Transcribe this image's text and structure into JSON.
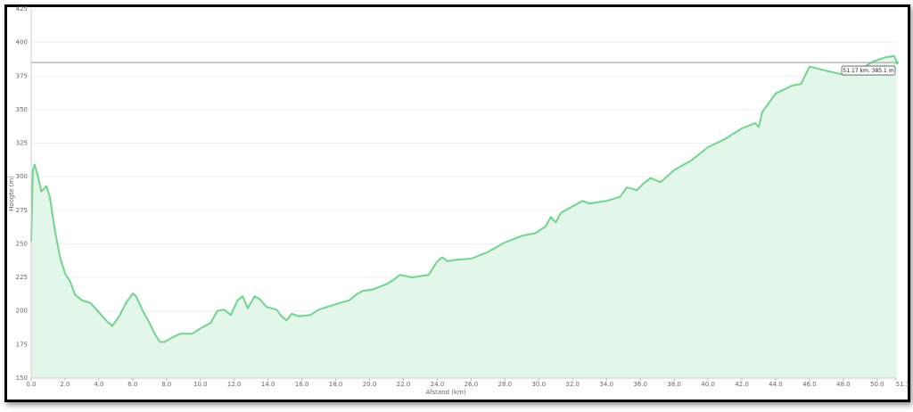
{
  "chart_data": {
    "type": "area",
    "x_label": "Afstand  (km)",
    "y_label": "Hoogte (m)",
    "x": [
      0,
      0.1,
      0.2,
      0.4,
      0.6,
      0.9,
      1.1,
      1.4,
      1.7,
      2.0,
      2.3,
      2.6,
      3.0,
      3.5,
      4.0,
      4.5,
      4.8,
      5.2,
      5.6,
      6.0,
      6.2,
      6.6,
      7.0,
      7.3,
      7.6,
      7.9,
      8.3,
      8.8,
      9.5,
      10.0,
      10.6,
      11.0,
      11.4,
      11.8,
      12.2,
      12.5,
      12.8,
      13.2,
      13.5,
      13.9,
      14.5,
      14.8,
      15.1,
      15.4,
      15.8,
      16.5,
      17.0,
      18.0,
      18.8,
      19.3,
      19.6,
      20.2,
      21.0,
      21.5,
      21.8,
      22.5,
      23.5,
      24.0,
      24.3,
      24.6,
      25.0,
      26.0,
      27.0,
      28.0,
      29.0,
      29.8,
      30.4,
      30.7,
      31.0,
      31.3,
      32.0,
      32.6,
      33.0,
      34.0,
      34.8,
      35.2,
      35.8,
      36.2,
      36.6,
      37.2,
      38.0,
      39.0,
      40.0,
      41.0,
      42.0,
      42.8,
      43.0,
      43.2,
      44.0,
      45.0,
      45.5,
      46.0,
      47.0,
      48.0,
      49.0,
      49.8,
      50.5,
      51.0,
      51.17
    ],
    "series": [
      {
        "name": "Hoogte",
        "color": "#72d48e",
        "fill": "#e3f6ea",
        "values": [
          252,
          305,
          309,
          300,
          289,
          293,
          285,
          260,
          240,
          228,
          222,
          212,
          208,
          206,
          199,
          192,
          189,
          196,
          206,
          213,
          211,
          200,
          191,
          183,
          177,
          177,
          180,
          183,
          183,
          187,
          191,
          200,
          201,
          197,
          208,
          211,
          202,
          211,
          209,
          203,
          201,
          196,
          193,
          198,
          196,
          197,
          201,
          205,
          208,
          213,
          215,
          216,
          220,
          224,
          227,
          225,
          227,
          237,
          240,
          237,
          238,
          239,
          244,
          251,
          256,
          258,
          263,
          270,
          266,
          273,
          278,
          282,
          280,
          282,
          285,
          292,
          290,
          295,
          299,
          296,
          305,
          312,
          322,
          328,
          336,
          340,
          337,
          348,
          362,
          368,
          369,
          382,
          379,
          376,
          380,
          386,
          389,
          390,
          385.1
        ]
      }
    ],
    "xlim": [
      0,
      51.17
    ],
    "ylim": [
      150,
      425
    ],
    "xticks": [
      {
        "value": 0,
        "label": "0.0"
      },
      {
        "value": 2,
        "label": "2.0"
      },
      {
        "value": 4,
        "label": "4.0"
      },
      {
        "value": 6,
        "label": "6.0"
      },
      {
        "value": 8,
        "label": "8.0"
      },
      {
        "value": 10,
        "label": "10.0"
      },
      {
        "value": 12,
        "label": "12.0"
      },
      {
        "value": 14,
        "label": "14.0"
      },
      {
        "value": 16,
        "label": "16.0"
      },
      {
        "value": 18,
        "label": "18.0"
      },
      {
        "value": 20,
        "label": "20.0"
      },
      {
        "value": 22,
        "label": "22.0"
      },
      {
        "value": 24,
        "label": "24.0"
      },
      {
        "value": 26,
        "label": "26.0"
      },
      {
        "value": 28,
        "label": "28.0"
      },
      {
        "value": 30,
        "label": "30.0"
      },
      {
        "value": 32,
        "label": "32.0"
      },
      {
        "value": 34,
        "label": "34.0"
      },
      {
        "value": 36,
        "label": "36.0"
      },
      {
        "value": 38,
        "label": "38.0"
      },
      {
        "value": 40,
        "label": "40.0"
      },
      {
        "value": 42,
        "label": "42.0"
      },
      {
        "value": 44,
        "label": "44.0"
      },
      {
        "value": 46,
        "label": "46.0"
      },
      {
        "value": 48,
        "label": "48.0"
      },
      {
        "value": 50,
        "label": "50.0"
      },
      {
        "value": 51.1,
        "label": "51.1"
      }
    ],
    "yticks": [
      150,
      175,
      200,
      225,
      250,
      275,
      300,
      325,
      350,
      375,
      400,
      425
    ],
    "grid": true,
    "marker": {
      "x": 51.17,
      "y": 385.1,
      "label": "51.17 km, 385.1 m"
    }
  }
}
